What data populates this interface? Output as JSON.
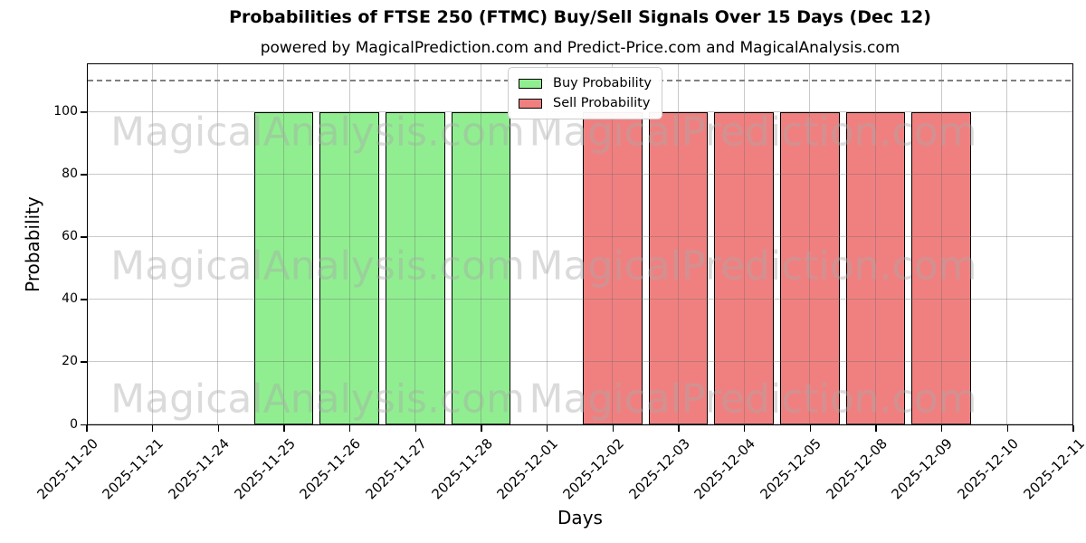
{
  "chart_data": {
    "type": "bar",
    "title": "Probabilities of FTSE 250 (FTMC) Buy/Sell Signals Over 15 Days (Dec 12)",
    "subtitle": "powered by MagicalPrediction.com and Predict-Price.com and MagicalAnalysis.com",
    "xlabel": "Days",
    "ylabel": "Probability",
    "categories": [
      "2025-11-20",
      "2025-11-21",
      "2025-11-24",
      "2025-11-25",
      "2025-11-26",
      "2025-11-27",
      "2025-11-28",
      "2025-12-01",
      "2025-12-02",
      "2025-12-03",
      "2025-12-04",
      "2025-12-05",
      "2025-12-08",
      "2025-12-09",
      "2025-12-10",
      "2025-12-11"
    ],
    "series": [
      {
        "name": "Buy Probability",
        "color": "#90EE90",
        "values": [
          0,
          0,
          0,
          100,
          100,
          100,
          100,
          0,
          0,
          0,
          0,
          0,
          0,
          0,
          0,
          0
        ]
      },
      {
        "name": "Sell Probability",
        "color": "#F08080",
        "values": [
          0,
          0,
          0,
          0,
          0,
          0,
          0,
          0,
          100,
          100,
          100,
          100,
          100,
          100,
          0,
          0
        ]
      }
    ],
    "ylim": [
      0,
      115
    ],
    "yticks": [
      0,
      20,
      40,
      60,
      80,
      100
    ],
    "threshold_line": 110,
    "grid": true,
    "legend_position": "upper center",
    "bar_edge_color": "#000000"
  },
  "watermarks": {
    "left": "MagicalAnalysis.com",
    "right": "MagicalPrediction.com",
    "rows": 3
  },
  "colors": {
    "buy": "#90EE90",
    "sell": "#F08080",
    "grid": "rgba(100,100,100,0.35)",
    "threshold": "#808080",
    "watermark": "rgba(170,170,170,0.42)",
    "axis": "#000000",
    "background": "#ffffff"
  }
}
